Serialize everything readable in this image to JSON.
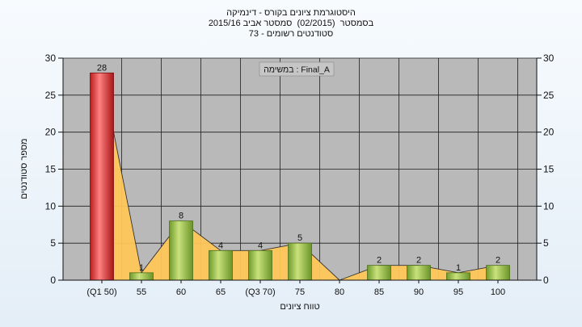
{
  "chart_data": {
    "type": "bar",
    "title_lines": [
      "היסטוגרמת ציונים בקורס - דינמיקה",
      "בסמסטר  (02/2015)  סמסטר אביב 2015/16",
      "סטודנטים רשומים - 73"
    ],
    "task_label": "במשימה : Final_A",
    "categories": [
      "(Q1 50)",
      "55",
      "60",
      "65",
      "(Q3 70)",
      "75",
      "80",
      "85",
      "90",
      "95",
      "100"
    ],
    "values": [
      28,
      1,
      8,
      4,
      4,
      5,
      0,
      2,
      2,
      1,
      2
    ],
    "data_labels": [
      "28",
      "1",
      "8",
      "4",
      "4",
      "5",
      "",
      "2",
      "2",
      "1",
      "2"
    ],
    "xlabel": "טווח ציונים",
    "ylabel": "מספר סטודנטים",
    "ylim": [
      0,
      30
    ],
    "yticks": [
      0,
      5,
      10,
      15,
      20,
      25,
      30
    ],
    "y_tick_labels": [
      "0",
      "5",
      "10",
      "15",
      "20",
      "25",
      "30"
    ],
    "secondary_y_axis": true,
    "grid": true,
    "highlight_bar_index": 0,
    "colors": {
      "plot_background": "#b9b9b9",
      "grid": "#1e1e1e",
      "bar_green": "#8fb93e",
      "bar_red": "#e43a3a",
      "area": "#ffc65a",
      "page_top": "#f7fbfe",
      "page_bottom": "#e4eef7"
    }
  }
}
